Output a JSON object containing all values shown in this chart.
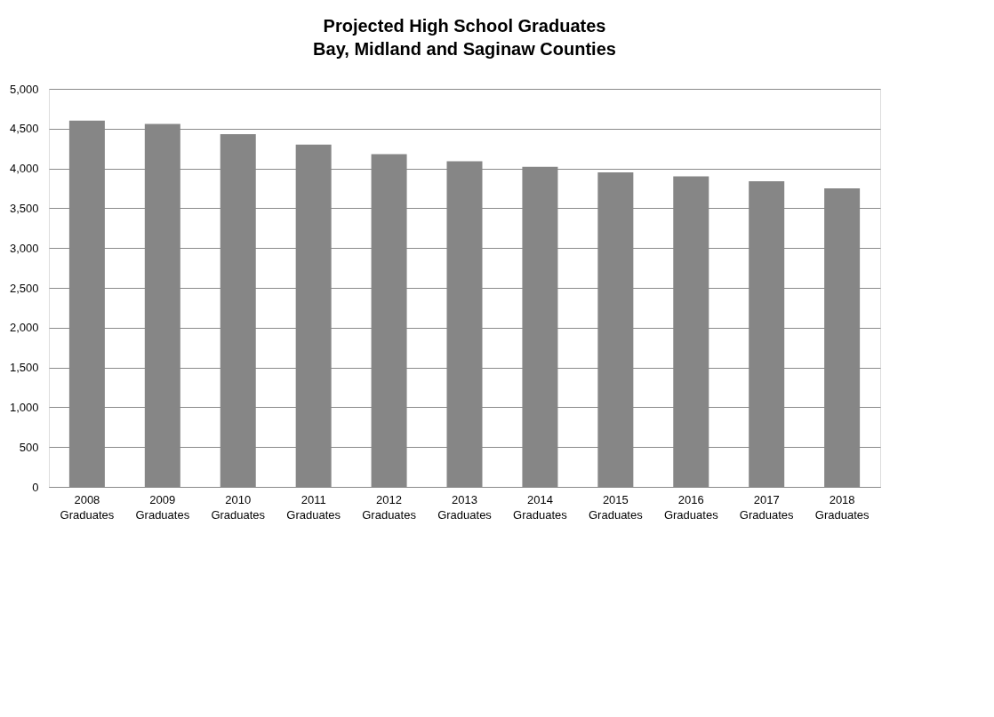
{
  "chart_data": {
    "type": "bar",
    "title": "Projected High School Graduates",
    "subtitle": "Bay, Midland and Saginaw Counties",
    "categories": [
      "2008 Graduates",
      "2009 Graduates",
      "2010 Graduates",
      "2011 Graduates",
      "2012 Graduates",
      "2013 Graduates",
      "2014 Graduates",
      "2015 Graduates",
      "2016 Graduates",
      "2017 Graduates",
      "2018 Graduates"
    ],
    "values": [
      4600,
      4560,
      4430,
      4300,
      4180,
      4090,
      4020,
      3950,
      3900,
      3840,
      3750
    ],
    "color": "#868686",
    "ylim": [
      0,
      5000
    ],
    "yticks": [
      {
        "value": 0,
        "label": "0"
      },
      {
        "value": 500,
        "label": "500"
      },
      {
        "value": 1000,
        "label": "1,000"
      },
      {
        "value": 1500,
        "label": "1,500"
      },
      {
        "value": 2000,
        "label": "2,000"
      },
      {
        "value": 2500,
        "label": "2,500"
      },
      {
        "value": 3000,
        "label": "3,000"
      },
      {
        "value": 3500,
        "label": "3,500"
      },
      {
        "value": 4000,
        "label": "4,000"
      },
      {
        "value": 4500,
        "label": "4,500"
      },
      {
        "value": 5000,
        "label": "5,000"
      }
    ],
    "grid": "y"
  }
}
